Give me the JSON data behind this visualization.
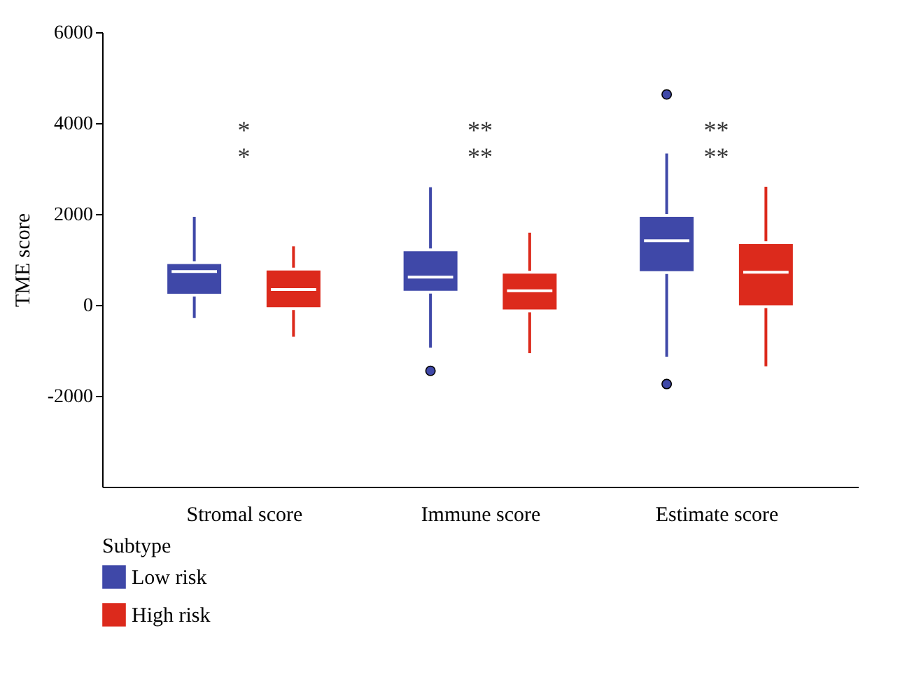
{
  "chart_data": {
    "type": "box",
    "ylabel": "TME score",
    "legend_title": "Subtype",
    "legend": "bottom",
    "grid": false,
    "categories": [
      "Stromal score",
      "Immune score",
      "Estimate score"
    ],
    "ylim": [
      -4000,
      6000
    ],
    "yticks": [
      -2000,
      0,
      2000,
      4000,
      6000
    ],
    "series": [
      {
        "name": "Low risk",
        "color": "#3f48a8",
        "boxes": [
          {
            "low": -290,
            "q1": 215,
            "median": 735,
            "q3": 930,
            "high": 1940
          },
          {
            "low": -940,
            "q1": 280,
            "median": 610,
            "q3": 1210,
            "high": 2590,
            "outliers": [
              -1450
            ]
          },
          {
            "low": -1140,
            "q1": 710,
            "median": 1410,
            "q3": 1970,
            "high": 3330,
            "outliers": [
              4630,
              -1740
            ]
          }
        ]
      },
      {
        "name": "High risk",
        "color": "#dc2a1c",
        "boxes": [
          {
            "low": -700,
            "q1": -80,
            "median": 340,
            "q3": 790,
            "high": 1290
          },
          {
            "low": -1060,
            "q1": -130,
            "median": 310,
            "q3": 720,
            "high": 1590
          },
          {
            "low": -1350,
            "q1": -40,
            "median": 720,
            "q3": 1370,
            "high": 2600
          }
        ]
      }
    ],
    "annotations": [
      "*",
      "*",
      "**",
      "**",
      "**",
      "**"
    ]
  }
}
